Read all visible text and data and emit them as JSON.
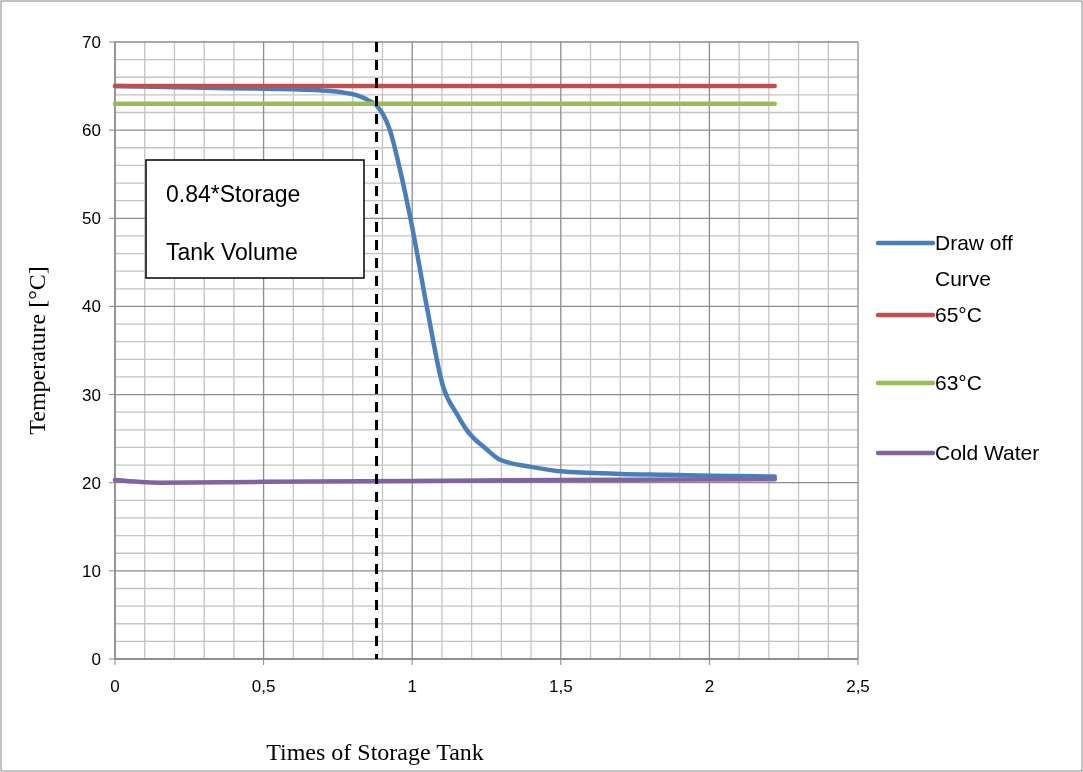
{
  "chart_data": {
    "type": "line",
    "xlabel": "Times of Storage Tank",
    "ylabel": "Temperature [°C]",
    "xlim": [
      0,
      2.5
    ],
    "ylim": [
      0,
      70
    ],
    "xticks": [
      0,
      {
        "value": 0.5,
        "label": "0,5"
      },
      1,
      {
        "value": 1.5,
        "label": "1,5"
      },
      2,
      {
        "value": 2.5,
        "label": "2,5"
      }
    ],
    "yticks": [
      0,
      10,
      20,
      30,
      40,
      50,
      60,
      70
    ],
    "grid": true,
    "legend": "right",
    "line_style": "solid",
    "series": [
      {
        "name": "Draw off Curve",
        "color": "#4a7ebb",
        "x": [
          0,
          0.3,
          0.51,
          0.7,
          0.78,
          0.82,
          0.858,
          0.88,
          0.925,
          0.959,
          1.0,
          1.049,
          1.104,
          1.15,
          1.183,
          1.25,
          1.296,
          1.4,
          1.497,
          1.7,
          1.856,
          2.0,
          2.22
        ],
        "values": [
          65.0,
          64.8,
          64.7,
          64.5,
          64.2,
          63.9,
          63.3,
          62.8,
          60,
          55.5,
          49,
          40,
          30.9,
          27.8,
          26,
          23.8,
          22.6,
          21.8,
          21.3,
          21.0,
          20.9,
          20.8,
          20.7
        ]
      },
      {
        "name": "65°C",
        "color": "#c0504d",
        "x": [
          0,
          2.22
        ],
        "values": [
          65,
          65
        ]
      },
      {
        "name": "63°C",
        "color": "#9bbb59",
        "x": [
          0,
          2.22
        ],
        "values": [
          63,
          63
        ]
      },
      {
        "name": "Cold Water",
        "color": "#8064a2",
        "x": [
          0,
          0.15,
          0.5,
          1,
          1.5,
          2.22
        ],
        "values": [
          20.3,
          20.0,
          20.1,
          20.2,
          20.3,
          20.4
        ]
      }
    ],
    "ref_lines": [
      {
        "axis": "x",
        "value": 0.88,
        "color": "#000000",
        "line_style": "dashed"
      }
    ],
    "annotations": [
      "0.84*Storage Tank Volume"
    ]
  }
}
